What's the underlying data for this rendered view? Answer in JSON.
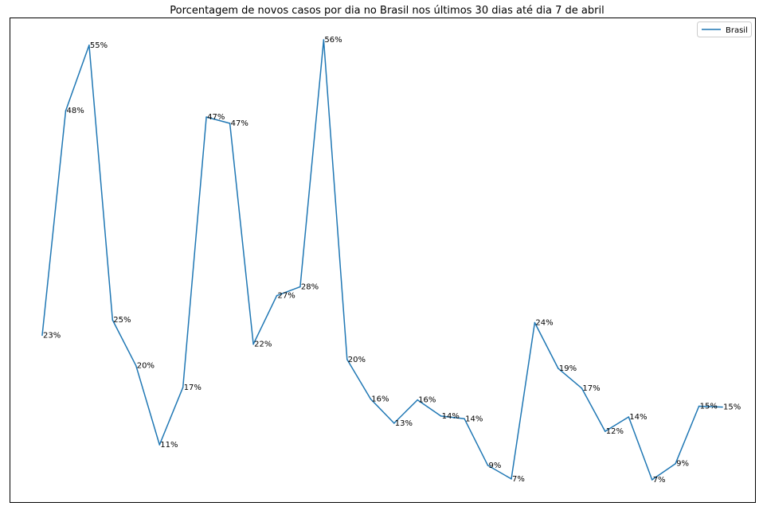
{
  "chart_data": {
    "type": "line",
    "title": "Porcentagem de novos casos por dia no Brasil nos últimos 30 dias até dia 7 de abril",
    "xlabel": "",
    "ylabel": "",
    "grid": false,
    "axes_ticks_visible": false,
    "legend": {
      "position": "top-right",
      "entries": [
        "Brasil"
      ]
    },
    "series": [
      {
        "name": "Brasil",
        "color": "#1f77b4",
        "values": [
          23.0,
          48.0,
          55.3,
          24.7,
          19.6,
          10.8,
          17.2,
          47.3,
          46.6,
          22.0,
          27.4,
          28.4,
          55.9,
          20.3,
          15.9,
          13.2,
          15.8,
          14.0,
          13.7,
          8.5,
          7.0,
          24.4,
          19.3,
          17.1,
          12.3,
          13.9,
          6.9,
          8.7,
          15.1,
          15.0
        ],
        "labels": [
          "23%",
          "48%",
          "55%",
          "25%",
          "20%",
          "11%",
          "17%",
          "47%",
          "47%",
          "22%",
          "27%",
          "28%",
          "56%",
          "20%",
          "16%",
          "13%",
          "16%",
          "14%",
          "14%",
          "9%",
          "7%",
          "24%",
          "19%",
          "17%",
          "12%",
          "14%",
          "7%",
          "9%",
          "15%",
          "15%"
        ]
      }
    ]
  }
}
